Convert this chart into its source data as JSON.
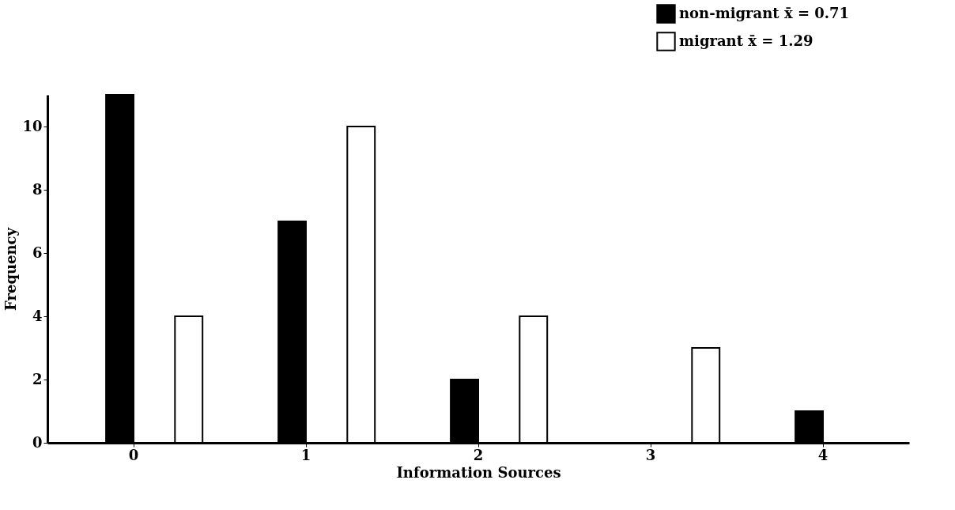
{
  "chart_data": {
    "type": "bar",
    "xlabel": "Information Sources",
    "ylabel": "Frequency",
    "categories": [
      "0",
      "1",
      "2",
      "3",
      "4"
    ],
    "series": [
      {
        "name": "non-migrant   x̄ = 0.71",
        "color": "#000000",
        "values": [
          11,
          7,
          2,
          0,
          1
        ]
      },
      {
        "name": "migrant          x̄ = 1.29",
        "color": "#ffffff",
        "values": [
          4,
          10,
          4,
          3,
          0
        ]
      }
    ],
    "ylim": [
      0,
      11
    ],
    "yticks": [
      0,
      2,
      4,
      6,
      8,
      10
    ],
    "grid": false,
    "legend": "top right"
  }
}
